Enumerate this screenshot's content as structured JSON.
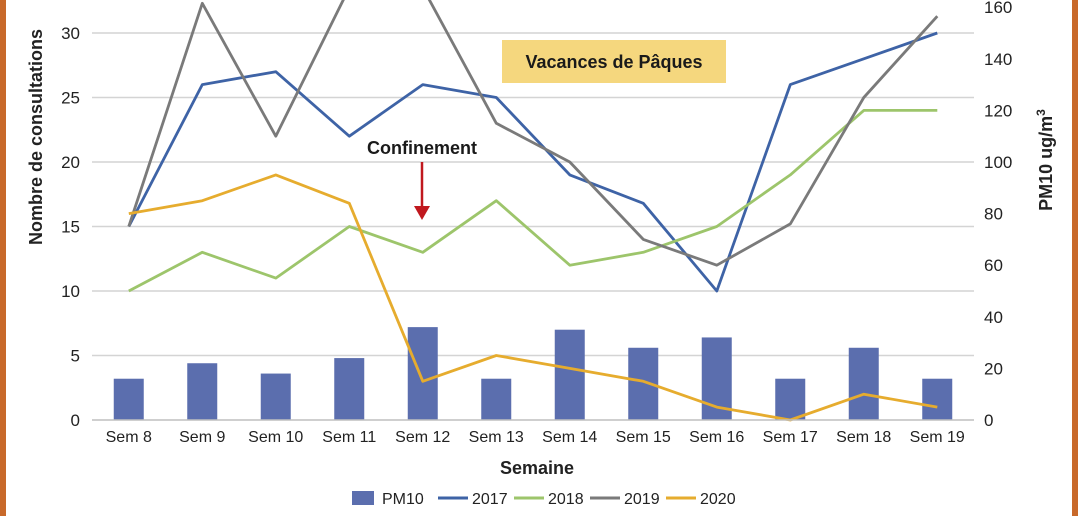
{
  "chart_data": {
    "type": "bar+line",
    "categories": [
      "Sem 8",
      "Sem 9",
      "Sem 10",
      "Sem 11",
      "Sem 12",
      "Sem 13",
      "Sem 14",
      "Sem 15",
      "Sem 16",
      "Sem 17",
      "Sem 18",
      "Sem 19"
    ],
    "xlabel": "Semaine",
    "ylabel_left": "Nombre de consultations",
    "ylabel_right": "PM10 ug/m",
    "ylabel_right_sup": "3",
    "ylim_left": [
      0,
      32
    ],
    "ylim_right": [
      0,
      160
    ],
    "yticks_left": [
      "0",
      "5",
      "10",
      "15",
      "20",
      "25",
      "30"
    ],
    "yticks_right": [
      "0",
      "20",
      "40",
      "60",
      "80",
      "100",
      "120",
      "140",
      "160"
    ],
    "grid": true,
    "legend_position": "bottom",
    "bars": {
      "name": "PM10",
      "axis": "right",
      "color": "#5b6eae",
      "values": [
        16,
        22,
        18,
        24,
        36,
        16,
        35,
        28,
        32,
        16,
        28,
        16
      ]
    },
    "series": [
      {
        "name": "2017",
        "axis": "left",
        "color": "#3e63a6",
        "values": [
          15,
          26,
          27,
          22,
          26,
          25,
          19,
          16.8,
          10,
          26,
          28,
          30
        ]
      },
      {
        "name": "2018",
        "axis": "left",
        "color": "#9dc56b",
        "values": [
          10,
          13,
          11,
          15,
          13,
          17,
          12,
          13,
          15,
          19,
          24,
          24
        ]
      },
      {
        "name": "2019",
        "axis": "left",
        "color": "#7a7a7a",
        "values": [
          15,
          32.3,
          22,
          33.5,
          33.5,
          23,
          20,
          14,
          12,
          15.2,
          25,
          31.3
        ]
      },
      {
        "name": "2020",
        "axis": "left",
        "color": "#e6ac2e",
        "values": [
          16,
          17,
          19,
          16.8,
          3,
          5,
          4,
          3,
          1,
          0,
          2,
          1
        ]
      }
    ],
    "annotations": {
      "confinement": "Confinement",
      "vacances": "Vacances de Pâques"
    }
  }
}
